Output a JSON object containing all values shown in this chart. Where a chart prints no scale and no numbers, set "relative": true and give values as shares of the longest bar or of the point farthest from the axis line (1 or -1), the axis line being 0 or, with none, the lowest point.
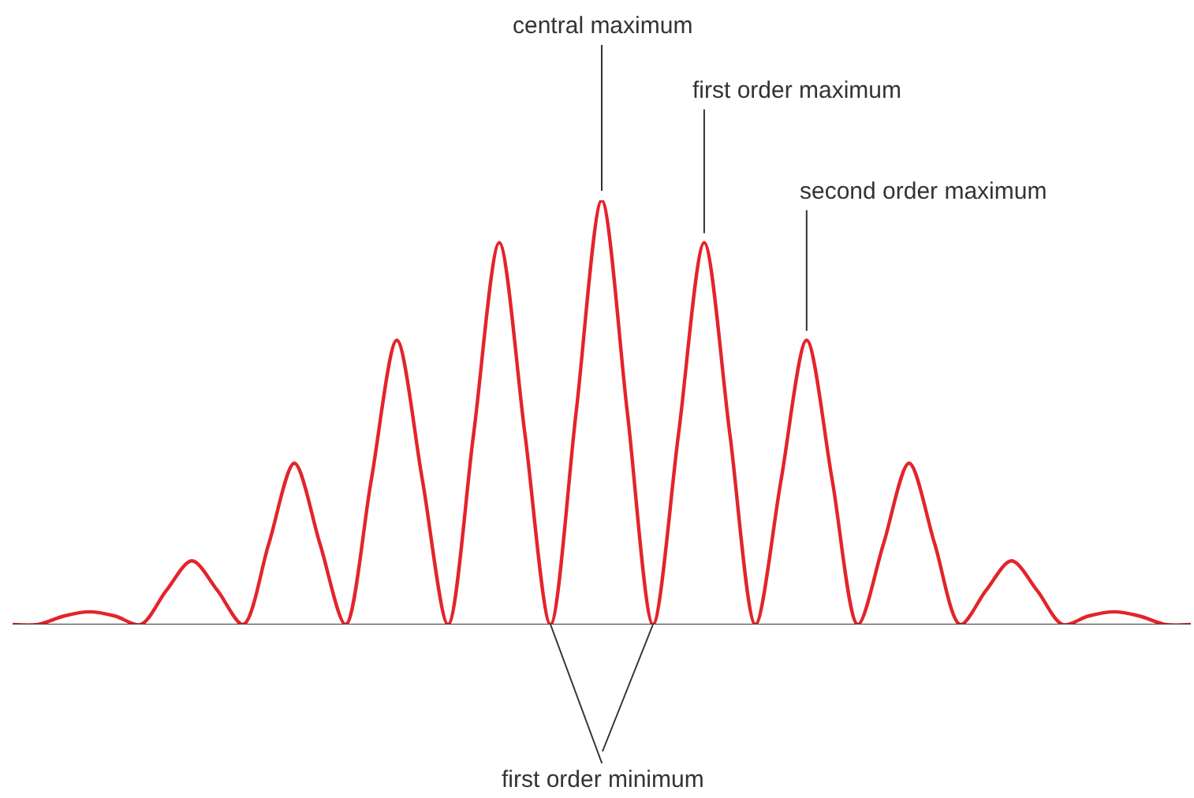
{
  "chart_data": {
    "type": "line",
    "relative": true,
    "categories": [
      null,
      null,
      null,
      null,
      null,
      null,
      null,
      null,
      null,
      null,
      null,
      null,
      null,
      null,
      null,
      null,
      null,
      null,
      null,
      null,
      null,
      null,
      null,
      null,
      null,
      null,
      null,
      null,
      null,
      null,
      null,
      null,
      null,
      null,
      null,
      null,
      null,
      null,
      null,
      null,
      null,
      null,
      null,
      null,
      null,
      null,
      null
    ],
    "series": [
      {
        "color": "#e3242b",
        "values": [
          0,
          0,
          0.02,
          0.03,
          0.02,
          0,
          0.08,
          0.15,
          0.08,
          0,
          0.19,
          0.38,
          0.19,
          0,
          0.34,
          0.67,
          0.34,
          0,
          0.45,
          0.9,
          0.45,
          0,
          0.5,
          1,
          0.5,
          0,
          0.45,
          0.9,
          0.45,
          0,
          0.34,
          0.67,
          0.34,
          0,
          0.19,
          0.38,
          0.19,
          0,
          0.08,
          0.15,
          0.08,
          0,
          0.02,
          0.03,
          0.02,
          0,
          0
        ]
      }
    ],
    "annotations": [
      "central maximum",
      "first order maximum",
      "second order maximum",
      "first order minimum"
    ],
    "marker": "none",
    "line_style": "solid"
  }
}
